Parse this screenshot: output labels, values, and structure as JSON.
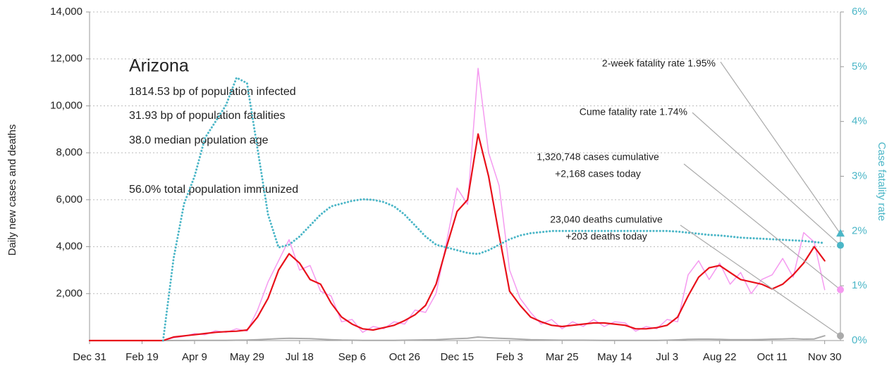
{
  "chart_data": {
    "type": "line",
    "info": {
      "title": "Arizona",
      "lines": [
        "1814.53 bp of population infected",
        "31.93 bp of population fatalities",
        "38.0 median population age",
        "56.0% total population immunized"
      ]
    },
    "y_label": "Daily new cases and deaths",
    "y2_label": "Case fatality rate",
    "x": [
      0,
      10,
      20,
      30,
      40,
      50,
      60,
      70,
      80,
      90,
      100,
      110,
      120,
      130,
      140,
      150,
      160,
      170,
      180,
      190,
      200,
      210,
      220,
      230,
      240,
      250,
      260,
      270,
      280,
      290,
      300,
      310,
      320,
      330,
      340,
      350,
      360,
      370,
      380,
      390,
      400,
      410,
      420,
      430,
      440,
      450,
      460,
      470,
      480,
      490,
      500,
      510,
      520,
      530,
      540,
      550,
      560,
      570,
      580,
      590,
      600,
      610,
      620,
      630,
      640,
      650,
      660,
      670,
      680,
      690,
      700
    ],
    "xlim": [
      0,
      715
    ],
    "xticks": [
      {
        "value": 0,
        "label": "Dec 31"
      },
      {
        "value": 50,
        "label": "Feb 19"
      },
      {
        "value": 100,
        "label": "Apr 9"
      },
      {
        "value": 150,
        "label": "May 29"
      },
      {
        "value": 200,
        "label": "Jul 18"
      },
      {
        "value": 250,
        "label": "Sep 6"
      },
      {
        "value": 300,
        "label": "Oct 26"
      },
      {
        "value": 350,
        "label": "Dec 15"
      },
      {
        "value": 400,
        "label": "Feb 3"
      },
      {
        "value": 450,
        "label": "Mar 25"
      },
      {
        "value": 500,
        "label": "May 14"
      },
      {
        "value": 550,
        "label": "Jul 3"
      },
      {
        "value": 600,
        "label": "Aug 22"
      },
      {
        "value": 650,
        "label": "Oct 11"
      },
      {
        "value": 700,
        "label": "Nov 30"
      }
    ],
    "ylim": [
      0,
      14000
    ],
    "yticks": [
      {
        "value": 2000,
        "label": "2,000"
      },
      {
        "value": 4000,
        "label": "4,000"
      },
      {
        "value": 6000,
        "label": "6,000"
      },
      {
        "value": 8000,
        "label": "8,000"
      },
      {
        "value": 10000,
        "label": "10,000"
      },
      {
        "value": 12000,
        "label": "12,000"
      },
      {
        "value": 14000,
        "label": "14,000"
      }
    ],
    "y2lim": [
      0,
      6
    ],
    "y2ticks": [
      {
        "value": 0,
        "label": "0%"
      },
      {
        "value": 1,
        "label": "1%"
      },
      {
        "value": 2,
        "label": "2%"
      },
      {
        "value": 3,
        "label": "3%"
      },
      {
        "value": 4,
        "label": "4%"
      },
      {
        "value": 5,
        "label": "5%"
      },
      {
        "value": 6,
        "label": "6%"
      }
    ],
    "grid": true,
    "series": [
      {
        "color": "#f59af0",
        "width": 1.5,
        "values": [
          0,
          0,
          0,
          0,
          0,
          0,
          0,
          0,
          120,
          180,
          300,
          250,
          420,
          350,
          500,
          400,
          1300,
          2500,
          3400,
          4300,
          3000,
          3200,
          2100,
          1900,
          800,
          900,
          350,
          600,
          500,
          800,
          700,
          1300,
          1200,
          2000,
          4200,
          6500,
          5800,
          11600,
          8000,
          6600,
          3000,
          1800,
          1200,
          700,
          900,
          500,
          800,
          600,
          900,
          600,
          800,
          750,
          400,
          600,
          500,
          900,
          800,
          2800,
          3400,
          2600,
          3300,
          2400,
          2900,
          2000,
          2600,
          2800,
          3500,
          2700,
          4600,
          4200,
          2168
        ]
      },
      {
        "color": "#aaaaaa",
        "width": 2,
        "values": [
          0,
          0,
          0,
          0,
          0,
          0,
          0,
          0,
          2,
          3,
          5,
          8,
          10,
          10,
          15,
          20,
          40,
          60,
          80,
          100,
          90,
          80,
          60,
          40,
          20,
          15,
          10,
          8,
          8,
          10,
          15,
          20,
          30,
          40,
          60,
          80,
          100,
          150,
          120,
          100,
          80,
          60,
          40,
          30,
          20,
          15,
          15,
          15,
          12,
          10,
          10,
          8,
          8,
          8,
          10,
          15,
          30,
          50,
          60,
          60,
          50,
          40,
          40,
          40,
          45,
          60,
          70,
          80,
          60,
          70,
          203
        ]
      },
      {
        "color": "#e8101a",
        "width": 2.2,
        "values": [
          0,
          0,
          0,
          0,
          0,
          0,
          0,
          0,
          150,
          200,
          250,
          300,
          350,
          380,
          400,
          450,
          1000,
          1800,
          3000,
          3700,
          3300,
          2600,
          2400,
          1600,
          1000,
          700,
          500,
          450,
          550,
          650,
          850,
          1100,
          1500,
          2400,
          4000,
          5500,
          6000,
          8800,
          7000,
          4500,
          2100,
          1500,
          1000,
          800,
          650,
          600,
          650,
          700,
          750,
          750,
          700,
          650,
          500,
          500,
          550,
          650,
          1000,
          1900,
          2700,
          3100,
          3200,
          2900,
          2600,
          2500,
          2400,
          2200,
          2400,
          2800,
          3300,
          4000,
          3400
        ]
      },
      {
        "color": "#4bb6c7",
        "width": 3,
        "dotted": true,
        "axis": "y2",
        "values": [
          null,
          null,
          null,
          null,
          null,
          null,
          null,
          0,
          1.5,
          2.5,
          3.0,
          3.7,
          4.0,
          4.3,
          4.8,
          4.7,
          3.5,
          2.3,
          1.7,
          1.75,
          1.9,
          2.1,
          2.3,
          2.45,
          2.5,
          2.55,
          2.58,
          2.57,
          2.53,
          2.45,
          2.3,
          2.1,
          1.9,
          1.75,
          1.7,
          1.65,
          1.6,
          1.58,
          1.65,
          1.75,
          1.85,
          1.92,
          1.96,
          1.98,
          2.0,
          2.0,
          2.0,
          2.0,
          2.0,
          2.0,
          2.0,
          2.0,
          2.0,
          2.0,
          2.0,
          2.0,
          1.99,
          1.97,
          1.95,
          1.93,
          1.92,
          1.9,
          1.88,
          1.87,
          1.86,
          1.85,
          1.84,
          1.83,
          1.82,
          1.8,
          1.78
        ]
      }
    ],
    "annotations": [
      {
        "lines": [
          "2-week fatality rate 1.95%"
        ],
        "value": 1.95,
        "axis": "y2",
        "marker": "triangle",
        "color": "#4bb6c7"
      },
      {
        "lines": [
          "Cume fatality rate 1.74%"
        ],
        "value": 1.74,
        "axis": "y2",
        "marker": "circle",
        "color": "#4bb6c7"
      },
      {
        "lines": [
          "1,320,748 cases cumulative",
          "+2,168 cases today"
        ],
        "value": 2168,
        "axis": "y",
        "marker": "circle",
        "color": "#f59af0"
      },
      {
        "lines": [
          "23,040 deaths cumulative",
          "+203 deaths today"
        ],
        "value": 203,
        "axis": "y",
        "marker": "circle",
        "color": "#aaaaaa"
      }
    ]
  }
}
